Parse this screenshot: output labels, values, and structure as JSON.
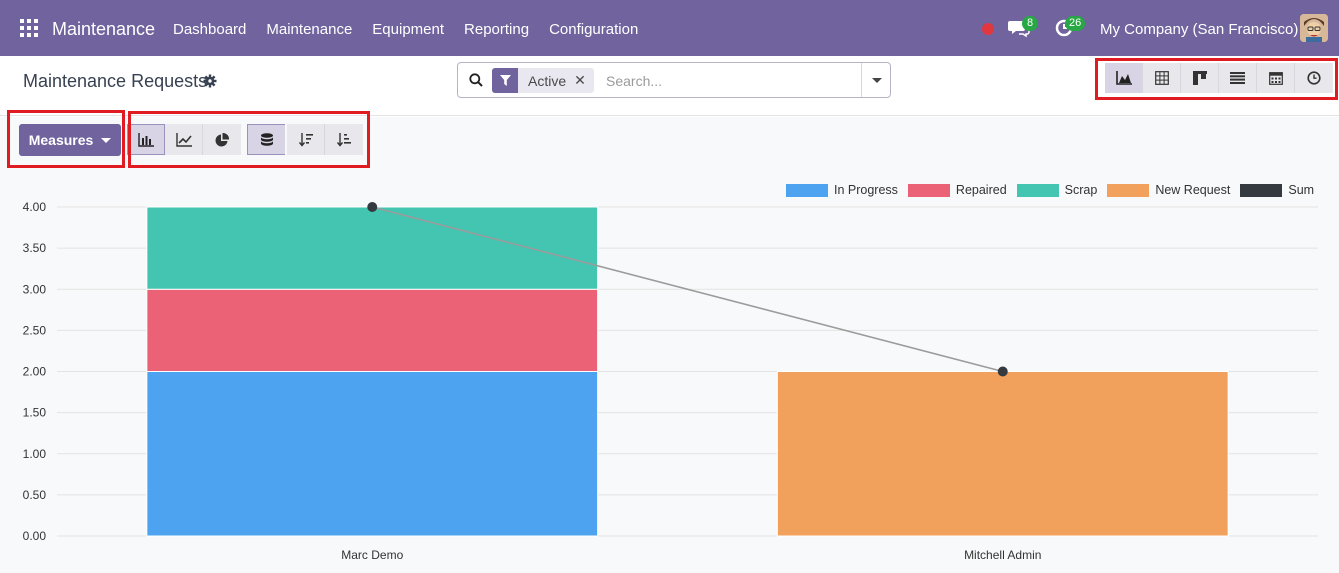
{
  "navbar": {
    "brand": "Maintenance",
    "menu": [
      "Dashboard",
      "Maintenance",
      "Equipment",
      "Reporting",
      "Configuration"
    ],
    "messages_count": "8",
    "activities_count": "26",
    "company": "My Company (San Francisco)"
  },
  "control": {
    "title": "Maintenance Requests",
    "facet_label": "Active",
    "facet_close": "✕",
    "search_placeholder": "Search..."
  },
  "graph": {
    "measures_label": "Measures"
  },
  "colors": {
    "navbar": "#71639e",
    "in_progress": "#4da3ef",
    "repaired": "#eb6276",
    "scrap": "#43c5b2",
    "new_request": "#f2a15d",
    "sum": "#343a40"
  },
  "chart_data": {
    "type": "bar",
    "stacked": true,
    "categories": [
      "Marc Demo",
      "Mitchell Admin"
    ],
    "series": [
      {
        "name": "In Progress",
        "values": [
          2,
          0
        ],
        "color": "#4da3ef"
      },
      {
        "name": "Repaired",
        "values": [
          1,
          0
        ],
        "color": "#eb6276"
      },
      {
        "name": "Scrap",
        "values": [
          1,
          0
        ],
        "color": "#43c5b2"
      },
      {
        "name": "New Request",
        "values": [
          0,
          2
        ],
        "color": "#f2a15d"
      }
    ],
    "sum_line": {
      "name": "Sum",
      "type": "line",
      "values": [
        4,
        2
      ],
      "color": "#343a40"
    },
    "ylim": [
      0,
      4
    ],
    "yticks": [
      "0.00",
      "0.50",
      "1.00",
      "1.50",
      "2.00",
      "2.50",
      "3.00",
      "3.50",
      "4.00"
    ],
    "legend_position": "top-right",
    "grid": true
  }
}
